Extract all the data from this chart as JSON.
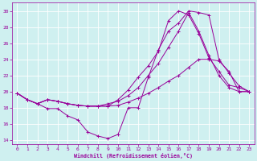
{
  "xlabel": "Windchill (Refroidissement éolien,°C)",
  "background_color": "#cff0f0",
  "grid_color": "#ffffff",
  "line_color": "#990099",
  "xlim": [
    -0.5,
    23.5
  ],
  "ylim": [
    13.5,
    31
  ],
  "xticks": [
    0,
    1,
    2,
    3,
    4,
    5,
    6,
    7,
    8,
    9,
    10,
    11,
    12,
    13,
    14,
    15,
    16,
    17,
    18,
    19,
    20,
    21,
    22,
    23
  ],
  "yticks": [
    14,
    16,
    18,
    20,
    22,
    24,
    26,
    28,
    30
  ],
  "line1_x": [
    0,
    1,
    2,
    3,
    4,
    5,
    6,
    7,
    8,
    9,
    10,
    11,
    12,
    13,
    14,
    15,
    16,
    17,
    18,
    19,
    20,
    21,
    22,
    23
  ],
  "line1_y": [
    19.8,
    19.0,
    18.5,
    17.9,
    17.9,
    17.0,
    16.5,
    15.0,
    14.5,
    14.2,
    14.7,
    18.0,
    18.0,
    21.8,
    25.2,
    27.5,
    28.5,
    30.0,
    29.8,
    29.5,
    24.0,
    22.3,
    20.7,
    20.0
  ],
  "line2_x": [
    0,
    1,
    2,
    3,
    4,
    5,
    6,
    7,
    8,
    9,
    10,
    11,
    12,
    13,
    14,
    15,
    16,
    17,
    18,
    19,
    20,
    21,
    22,
    23
  ],
  "line2_y": [
    19.8,
    19.0,
    18.5,
    19.0,
    18.8,
    18.5,
    18.3,
    18.2,
    18.2,
    18.2,
    18.3,
    18.7,
    19.2,
    19.8,
    20.5,
    21.3,
    22.0,
    23.0,
    24.0,
    24.0,
    23.8,
    22.5,
    20.0,
    20.0
  ],
  "line3_x": [
    0,
    1,
    2,
    3,
    4,
    5,
    6,
    7,
    8,
    9,
    10,
    11,
    12,
    13,
    14,
    15,
    16,
    17,
    18,
    19,
    20,
    21,
    22,
    23
  ],
  "line3_y": [
    19.8,
    19.0,
    18.5,
    19.0,
    18.8,
    18.5,
    18.3,
    18.2,
    18.2,
    18.2,
    19.0,
    20.2,
    21.8,
    23.2,
    25.0,
    28.8,
    30.0,
    29.5,
    27.2,
    24.2,
    22.5,
    20.8,
    20.5,
    20.0
  ],
  "line4_x": [
    0,
    1,
    2,
    3,
    4,
    5,
    6,
    7,
    8,
    9,
    10,
    11,
    12,
    13,
    14,
    15,
    16,
    17,
    18,
    19,
    20,
    21,
    22,
    23
  ],
  "line4_y": [
    19.8,
    19.0,
    18.5,
    19.0,
    18.8,
    18.5,
    18.3,
    18.2,
    18.2,
    18.5,
    18.8,
    19.5,
    20.5,
    22.0,
    23.5,
    25.5,
    27.5,
    29.8,
    27.5,
    24.5,
    22.0,
    20.5,
    20.0,
    20.0
  ]
}
